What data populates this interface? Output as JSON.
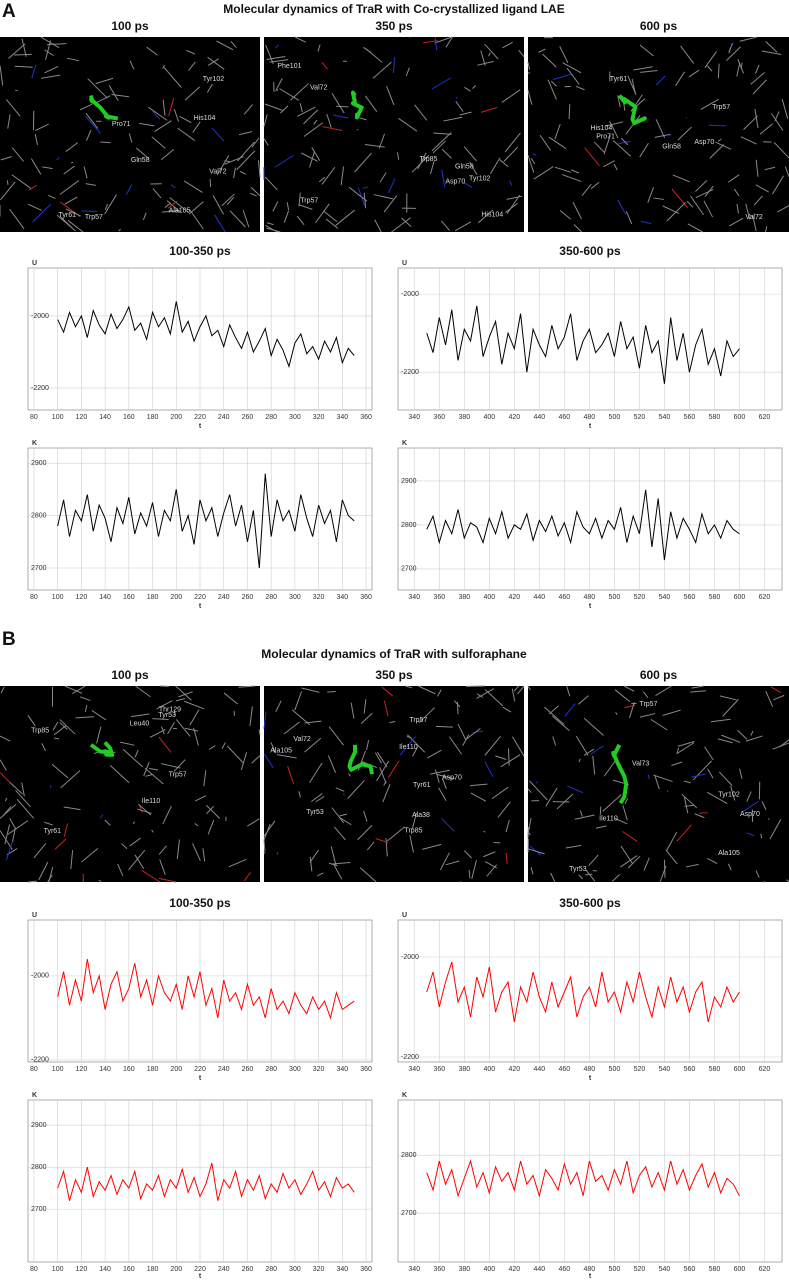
{
  "figure": [
    {
      "panel": "A",
      "title": "Molecular dynamics of TraR with Co-crystallized ligand LAE",
      "images": [
        {
          "title": "100 ps",
          "labels": [
            "His104",
            "Trp57",
            "Ala105",
            "Tyr61",
            "Val72",
            "Gln58",
            "Tyr102",
            "Pro71"
          ]
        },
        {
          "title": "350 ps",
          "labels": [
            "Asp70",
            "Phe101",
            "Val72",
            "Tyr102",
            "Trp57",
            "His104",
            "Gln58",
            "Trp85"
          ]
        },
        {
          "title": "600 ps",
          "labels": [
            "Tyr61",
            "Gln58",
            "Asp70",
            "Trp57",
            "Pro71",
            "His104",
            "Val72"
          ]
        }
      ]
    },
    {
      "panel": "B",
      "title": "Molecular dynamics of TraR with sulforaphane",
      "images": [
        {
          "title": "100 ps",
          "labels": [
            "Trp85",
            "Ile110",
            "Tyr61",
            "Trp57",
            "Tyr53",
            "Thr129",
            "Leu40"
          ]
        },
        {
          "title": "350 ps",
          "labels": [
            "Asp70",
            "Tyr61",
            "Ala105",
            "Trp57",
            "Val72",
            "Ile110",
            "Tyr53",
            "Ala38",
            "Trp85"
          ]
        },
        {
          "title": "600 ps",
          "labels": [
            "Asp70",
            "Ala105",
            "Tyr102",
            "Val73",
            "Ile110",
            "Tyr53",
            "Trp57"
          ]
        }
      ]
    }
  ],
  "chart_data": [
    {
      "type": "line",
      "title": "100-350 ps",
      "ylabel": "U",
      "xlabel": "t",
      "color": "#000000",
      "grid": true,
      "xlim": [
        75,
        365
      ],
      "ylim": [
        -2261,
        -1867
      ],
      "xticks": [
        80,
        100,
        120,
        140,
        160,
        180,
        200,
        220,
        240,
        260,
        280,
        300,
        320,
        340,
        360
      ],
      "yticks": [
        -2000,
        -2200
      ],
      "x": [
        100,
        105,
        110,
        115,
        120,
        125,
        130,
        135,
        140,
        145,
        150,
        155,
        160,
        165,
        170,
        175,
        180,
        185,
        190,
        195,
        200,
        205,
        210,
        215,
        220,
        225,
        230,
        235,
        240,
        245,
        250,
        255,
        260,
        265,
        270,
        275,
        280,
        285,
        290,
        295,
        300,
        305,
        310,
        315,
        320,
        325,
        330,
        335,
        340,
        345,
        350
      ],
      "values": [
        -2010,
        -2045,
        -1990,
        -2030,
        -2000,
        -2060,
        -1985,
        -2025,
        -2050,
        -1995,
        -2035,
        -2010,
        -1975,
        -2040,
        -2020,
        -2065,
        -1990,
        -2030,
        -2005,
        -2050,
        -1960,
        -2045,
        -2015,
        -2070,
        -2030,
        -2000,
        -2055,
        -2040,
        -2085,
        -2025,
        -2060,
        -2090,
        -2045,
        -2100,
        -2070,
        -2035,
        -2110,
        -2065,
        -2095,
        -2140,
        -2075,
        -2050,
        -2105,
        -2085,
        -2120,
        -2070,
        -2100,
        -2060,
        -2130,
        -2090,
        -2110
      ]
    },
    {
      "type": "line",
      "title": "350-600 ps",
      "ylabel": "U",
      "xlabel": "t",
      "color": "#000000",
      "grid": true,
      "xlim": [
        327,
        634
      ],
      "ylim": [
        -2297,
        -1933
      ],
      "xticks": [
        340,
        360,
        380,
        400,
        420,
        440,
        460,
        480,
        500,
        520,
        540,
        560,
        580,
        600,
        620
      ],
      "yticks": [
        -2000,
        -2200
      ],
      "x": [
        350,
        355,
        360,
        365,
        370,
        375,
        380,
        385,
        390,
        395,
        400,
        405,
        410,
        415,
        420,
        425,
        430,
        435,
        440,
        445,
        450,
        455,
        460,
        465,
        470,
        475,
        480,
        485,
        490,
        495,
        500,
        505,
        510,
        515,
        520,
        525,
        530,
        535,
        540,
        545,
        550,
        555,
        560,
        565,
        570,
        575,
        580,
        585,
        590,
        595,
        600
      ],
      "values": [
        -2100,
        -2150,
        -2060,
        -2130,
        -2040,
        -2170,
        -2090,
        -2120,
        -2030,
        -2160,
        -2110,
        -2070,
        -2180,
        -2100,
        -2140,
        -2050,
        -2200,
        -2090,
        -2130,
        -2160,
        -2080,
        -2140,
        -2110,
        -2050,
        -2170,
        -2120,
        -2090,
        -2150,
        -2130,
        -2100,
        -2160,
        -2070,
        -2140,
        -2110,
        -2190,
        -2080,
        -2150,
        -2120,
        -2230,
        -2060,
        -2170,
        -2100,
        -2200,
        -2130,
        -2090,
        -2180,
        -2140,
        -2210,
        -2120,
        -2160,
        -2140
      ]
    },
    {
      "type": "line",
      "ylabel": "K",
      "xlabel": "t",
      "color": "#000000",
      "grid": true,
      "xlim": [
        75,
        365
      ],
      "ylim": [
        2658,
        2929
      ],
      "xticks": [
        80,
        100,
        120,
        140,
        160,
        180,
        200,
        220,
        240,
        260,
        280,
        300,
        320,
        340,
        360
      ],
      "yticks": [
        2700,
        2800,
        2900
      ],
      "x": [
        100,
        105,
        110,
        115,
        120,
        125,
        130,
        135,
        140,
        145,
        150,
        155,
        160,
        165,
        170,
        175,
        180,
        185,
        190,
        195,
        200,
        205,
        210,
        215,
        220,
        225,
        230,
        235,
        240,
        245,
        250,
        255,
        260,
        265,
        270,
        275,
        280,
        285,
        290,
        295,
        300,
        305,
        310,
        315,
        320,
        325,
        330,
        335,
        340,
        345,
        350
      ],
      "values": [
        2780,
        2830,
        2760,
        2810,
        2790,
        2840,
        2770,
        2820,
        2795,
        2750,
        2815,
        2785,
        2835,
        2765,
        2805,
        2780,
        2825,
        2760,
        2810,
        2790,
        2850,
        2770,
        2800,
        2745,
        2830,
        2790,
        2815,
        2760,
        2805,
        2840,
        2780,
        2820,
        2750,
        2810,
        2700,
        2880,
        2760,
        2830,
        2790,
        2810,
        2770,
        2840,
        2795,
        2760,
        2820,
        2785,
        2810,
        2750,
        2830,
        2800,
        2790
      ]
    },
    {
      "type": "line",
      "ylabel": "K",
      "xlabel": "t",
      "color": "#000000",
      "grid": true,
      "xlim": [
        327,
        634
      ],
      "ylim": [
        2652,
        2975
      ],
      "xticks": [
        340,
        360,
        380,
        400,
        420,
        440,
        460,
        480,
        500,
        520,
        540,
        560,
        580,
        600,
        620
      ],
      "yticks": [
        2700,
        2800,
        2900
      ],
      "x": [
        350,
        355,
        360,
        365,
        370,
        375,
        380,
        385,
        390,
        395,
        400,
        405,
        410,
        415,
        420,
        425,
        430,
        435,
        440,
        445,
        450,
        455,
        460,
        465,
        470,
        475,
        480,
        485,
        490,
        495,
        500,
        505,
        510,
        515,
        520,
        525,
        530,
        535,
        540,
        545,
        550,
        555,
        560,
        565,
        570,
        575,
        580,
        585,
        590,
        595,
        600
      ],
      "values": [
        2790,
        2820,
        2760,
        2810,
        2780,
        2835,
        2770,
        2805,
        2795,
        2760,
        2815,
        2780,
        2830,
        2770,
        2800,
        2790,
        2825,
        2765,
        2810,
        2785,
        2820,
        2775,
        2805,
        2760,
        2830,
        2795,
        2780,
        2815,
        2770,
        2810,
        2790,
        2840,
        2760,
        2820,
        2780,
        2880,
        2750,
        2860,
        2720,
        2830,
        2770,
        2815,
        2790,
        2760,
        2825,
        2780,
        2800,
        2770,
        2810,
        2790,
        2780
      ]
    },
    {
      "type": "line",
      "title": "100-350 ps",
      "ylabel": "U",
      "xlabel": "t",
      "color": "#ff0000",
      "grid": true,
      "xlim": [
        75,
        365
      ],
      "ylim": [
        -2205,
        -1867
      ],
      "xticks": [
        80,
        100,
        120,
        140,
        160,
        180,
        200,
        220,
        240,
        260,
        280,
        300,
        320,
        340,
        360
      ],
      "yticks": [
        -2000,
        -2200
      ],
      "x": [
        100,
        105,
        110,
        115,
        120,
        125,
        130,
        135,
        140,
        145,
        150,
        155,
        160,
        165,
        170,
        175,
        180,
        185,
        190,
        195,
        200,
        205,
        210,
        215,
        220,
        225,
        230,
        235,
        240,
        245,
        250,
        255,
        260,
        265,
        270,
        275,
        280,
        285,
        290,
        295,
        300,
        305,
        310,
        315,
        320,
        325,
        330,
        335,
        340,
        345,
        350
      ],
      "values": [
        -2050,
        -1990,
        -2070,
        -2010,
        -2060,
        -1960,
        -2040,
        -2000,
        -2080,
        -2020,
        -1990,
        -2060,
        -2030,
        -1970,
        -2050,
        -2010,
        -2070,
        -2000,
        -2040,
        -2060,
        -2020,
        -2080,
        -2000,
        -2050,
        -1990,
        -2070,
        -2030,
        -2100,
        -2010,
        -2060,
        -2040,
        -2080,
        -2020,
        -2070,
        -2050,
        -2100,
        -2030,
        -2080,
        -2060,
        -2090,
        -2040,
        -2070,
        -2090,
        -2050,
        -2080,
        -2060,
        -2100,
        -2040,
        -2080,
        -2070,
        -2060
      ]
    },
    {
      "type": "line",
      "title": "350-600 ps",
      "ylabel": "U",
      "xlabel": "t",
      "color": "#ff0000",
      "grid": true,
      "xlim": [
        327,
        634
      ],
      "ylim": [
        -2210,
        -1926
      ],
      "xticks": [
        340,
        360,
        380,
        400,
        420,
        440,
        460,
        480,
        500,
        520,
        540,
        560,
        580,
        600,
        620
      ],
      "yticks": [
        -2000,
        -2200
      ],
      "x": [
        350,
        355,
        360,
        365,
        370,
        375,
        380,
        385,
        390,
        395,
        400,
        405,
        410,
        415,
        420,
        425,
        430,
        435,
        440,
        445,
        450,
        455,
        460,
        465,
        470,
        475,
        480,
        485,
        490,
        495,
        500,
        505,
        510,
        515,
        520,
        525,
        530,
        535,
        540,
        545,
        550,
        555,
        560,
        565,
        570,
        575,
        580,
        585,
        590,
        595,
        600
      ],
      "values": [
        -2070,
        -2030,
        -2100,
        -2050,
        -2010,
        -2090,
        -2060,
        -2120,
        -2040,
        -2080,
        -2020,
        -2110,
        -2070,
        -2050,
        -2130,
        -2060,
        -2090,
        -2030,
        -2080,
        -2110,
        -2050,
        -2100,
        -2070,
        -2040,
        -2120,
        -2080,
        -2060,
        -2100,
        -2030,
        -2090,
        -2070,
        -2110,
        -2050,
        -2090,
        -2030,
        -2080,
        -2120,
        -2060,
        -2100,
        -2040,
        -2090,
        -2060,
        -2110,
        -2070,
        -2050,
        -2130,
        -2080,
        -2100,
        -2060,
        -2090,
        -2070
      ]
    },
    {
      "type": "line",
      "ylabel": "K",
      "xlabel": "t",
      "color": "#ff0000",
      "grid": true,
      "xlim": [
        75,
        365
      ],
      "ylim": [
        2574,
        2960
      ],
      "xticks": [
        80,
        100,
        120,
        140,
        160,
        180,
        200,
        220,
        240,
        260,
        280,
        300,
        320,
        340,
        360
      ],
      "yticks": [
        2700,
        2800,
        2900
      ],
      "x": [
        100,
        105,
        110,
        115,
        120,
        125,
        130,
        135,
        140,
        145,
        150,
        155,
        160,
        165,
        170,
        175,
        180,
        185,
        190,
        195,
        200,
        205,
        210,
        215,
        220,
        225,
        230,
        235,
        240,
        245,
        250,
        255,
        260,
        265,
        270,
        275,
        280,
        285,
        290,
        295,
        300,
        305,
        310,
        315,
        320,
        325,
        330,
        335,
        340,
        345,
        350
      ],
      "values": [
        2750,
        2790,
        2720,
        2770,
        2740,
        2800,
        2730,
        2765,
        2745,
        2780,
        2735,
        2770,
        2750,
        2790,
        2725,
        2760,
        2745,
        2780,
        2730,
        2770,
        2750,
        2795,
        2740,
        2775,
        2730,
        2760,
        2810,
        2720,
        2770,
        2750,
        2790,
        2730,
        2770,
        2745,
        2780,
        2725,
        2760,
        2740,
        2785,
        2750,
        2770,
        2735,
        2760,
        2790,
        2745,
        2765,
        2730,
        2775,
        2750,
        2760,
        2740
      ]
    },
    {
      "type": "line",
      "ylabel": "K",
      "xlabel": "t",
      "color": "#ff0000",
      "grid": true,
      "xlim": [
        327,
        634
      ],
      "ylim": [
        2616,
        2895
      ],
      "xticks": [
        340,
        360,
        380,
        400,
        420,
        440,
        460,
        480,
        500,
        520,
        540,
        560,
        580,
        600,
        620
      ],
      "yticks": [
        2700,
        2800
      ],
      "x": [
        350,
        355,
        360,
        365,
        370,
        375,
        380,
        385,
        390,
        395,
        400,
        405,
        410,
        415,
        420,
        425,
        430,
        435,
        440,
        445,
        450,
        455,
        460,
        465,
        470,
        475,
        480,
        485,
        490,
        495,
        500,
        505,
        510,
        515,
        520,
        525,
        530,
        535,
        540,
        545,
        550,
        555,
        560,
        565,
        570,
        575,
        580,
        585,
        590,
        595,
        600
      ],
      "values": [
        2770,
        2740,
        2790,
        2750,
        2775,
        2730,
        2760,
        2790,
        2745,
        2770,
        2735,
        2780,
        2755,
        2770,
        2740,
        2790,
        2750,
        2765,
        2730,
        2775,
        2760,
        2740,
        2785,
        2750,
        2770,
        2730,
        2790,
        2755,
        2765,
        2740,
        2775,
        2750,
        2790,
        2735,
        2765,
        2780,
        2745,
        2770,
        2740,
        2790,
        2750,
        2775,
        2740,
        2765,
        2785,
        2745,
        2770,
        2735,
        2760,
        2750,
        2730
      ]
    }
  ]
}
